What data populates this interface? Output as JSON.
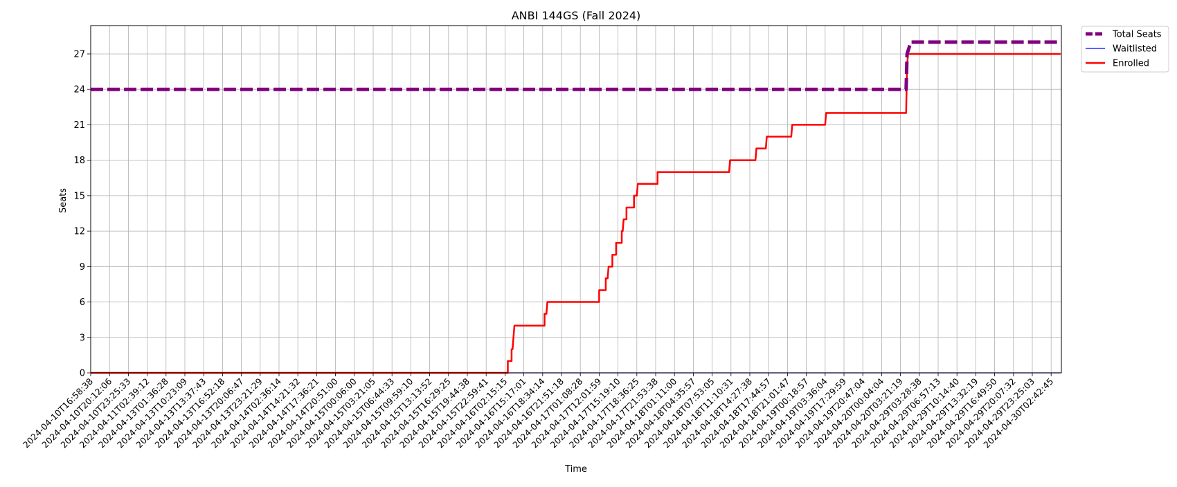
{
  "chart_data": {
    "type": "line",
    "title": "ANBI 144GS (Fall 2024)",
    "xlabel": "Time",
    "ylabel": "Seats",
    "ylim": [
      0,
      29.4
    ],
    "y_ticks": [
      0,
      3,
      6,
      9,
      12,
      15,
      18,
      21,
      24,
      27
    ],
    "grid": true,
    "legend_position": "outside-top-right",
    "categories": [
      "2024-04-10T16:58:38",
      "2024-04-10T20:12:06",
      "2024-04-10T23:25:33",
      "2024-04-11T02:39:12",
      "2024-04-13T01:36:28",
      "2024-04-13T10:23:09",
      "2024-04-13T13:37:43",
      "2024-04-13T16:52:18",
      "2024-04-13T20:06:47",
      "2024-04-13T23:21:29",
      "2024-04-14T02:36:14",
      "2024-04-14T14:21:32",
      "2024-04-14T17:36:21",
      "2024-04-14T20:51:00",
      "2024-04-15T00:06:00",
      "2024-04-15T03:21:05",
      "2024-04-15T06:44:33",
      "2024-04-15T09:59:10",
      "2024-04-15T13:13:52",
      "2024-04-15T16:29:25",
      "2024-04-15T19:44:38",
      "2024-04-15T22:59:41",
      "2024-04-16T02:15:15",
      "2024-04-16T15:17:01",
      "2024-04-16T18:34:14",
      "2024-04-16T21:51:18",
      "2024-04-17T01:08:28",
      "2024-04-17T12:01:59",
      "2024-04-17T15:19:10",
      "2024-04-17T18:36:25",
      "2024-04-17T21:53:38",
      "2024-04-18T01:11:00",
      "2024-04-18T04:35:57",
      "2024-04-18T07:53:05",
      "2024-04-18T11:10:31",
      "2024-04-18T14:27:38",
      "2024-04-18T17:44:57",
      "2024-04-18T21:01:47",
      "2024-04-19T00:18:57",
      "2024-04-19T03:36:04",
      "2024-04-19T17:29:59",
      "2024-04-19T20:47:04",
      "2024-04-20T00:04:04",
      "2024-04-20T03:21:19",
      "2024-04-29T03:28:38",
      "2024-04-29T06:57:13",
      "2024-04-29T10:14:40",
      "2024-04-29T13:32:19",
      "2024-04-29T16:49:50",
      "2024-04-29T20:07:32",
      "2024-04-29T23:25:03",
      "2024-04-30T02:42:45"
    ],
    "series": [
      {
        "name": "Total Seats",
        "color": "#800080",
        "style": "dashed",
        "points": [
          [
            0,
            24
          ],
          [
            43.3,
            24
          ],
          [
            43.35,
            27
          ],
          [
            43.55,
            28
          ],
          [
            51.5,
            28
          ]
        ]
      },
      {
        "name": "Waitlisted",
        "color": "#0000ff",
        "style": "solid",
        "points": [
          [
            0,
            0
          ],
          [
            51.5,
            0
          ]
        ]
      },
      {
        "name": "Enrolled",
        "color": "#ff0000",
        "style": "solid",
        "points": [
          [
            0,
            0
          ],
          [
            22.15,
            0
          ],
          [
            22.15,
            1
          ],
          [
            22.35,
            1
          ],
          [
            22.35,
            2
          ],
          [
            22.4,
            2
          ],
          [
            22.5,
            4
          ],
          [
            24.1,
            4
          ],
          [
            24.1,
            5
          ],
          [
            24.2,
            5
          ],
          [
            24.25,
            6
          ],
          [
            27.0,
            6
          ],
          [
            27.0,
            7
          ],
          [
            27.35,
            7
          ],
          [
            27.35,
            8
          ],
          [
            27.45,
            8
          ],
          [
            27.5,
            9
          ],
          [
            27.7,
            9
          ],
          [
            27.7,
            10
          ],
          [
            27.9,
            10
          ],
          [
            27.9,
            11
          ],
          [
            28.2,
            11
          ],
          [
            28.2,
            12
          ],
          [
            28.25,
            12
          ],
          [
            28.3,
            13
          ],
          [
            28.45,
            13
          ],
          [
            28.45,
            14
          ],
          [
            28.85,
            14
          ],
          [
            28.85,
            15
          ],
          [
            29.0,
            15
          ],
          [
            29.05,
            16
          ],
          [
            30.1,
            16
          ],
          [
            30.1,
            17
          ],
          [
            33.9,
            17
          ],
          [
            33.95,
            18
          ],
          [
            35.3,
            18
          ],
          [
            35.35,
            19
          ],
          [
            35.85,
            19
          ],
          [
            35.9,
            20
          ],
          [
            37.2,
            20
          ],
          [
            37.25,
            21
          ],
          [
            39.0,
            21
          ],
          [
            39.05,
            22
          ],
          [
            43.3,
            22
          ],
          [
            43.35,
            26
          ],
          [
            43.4,
            27
          ],
          [
            51.5,
            27
          ]
        ]
      }
    ]
  }
}
